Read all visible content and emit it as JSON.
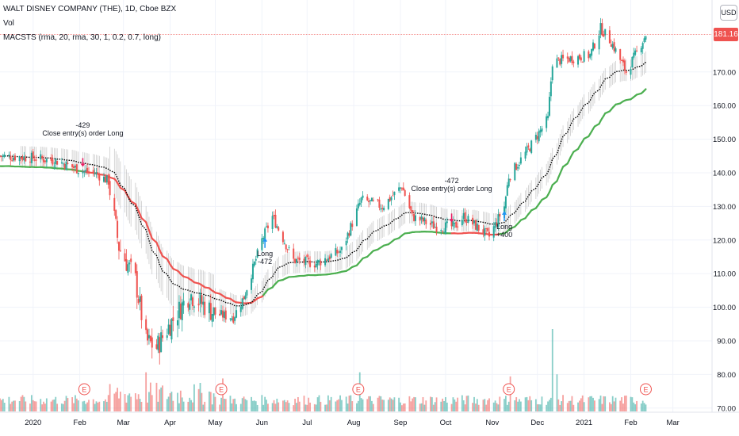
{
  "header": {
    "symbol_line": "WALT DISNEY COMPANY (THE), 1D, Cboe BZX",
    "volume_label": "Vol",
    "strategy_label": "MACSTS (rma, 20, rma, 30, 1, 0.2, 0.7, long)",
    "currency_button": "USD"
  },
  "last_price": "181.16",
  "colors": {
    "up": "#26a69a",
    "down": "#ef5350",
    "ma_fast": "#000000",
    "ma_slow_long": "#4caf50",
    "ma_slow_short": "#ef5350",
    "long_arrow": "#2196f3",
    "close_arrow": "#e91e63",
    "grid": "#f0f3fa",
    "axis_text": "#131722"
  },
  "annotations": [
    {
      "id": "close-1",
      "lines": [
        "-429",
        "Close entry(s) order Long"
      ],
      "date": "2020-02-03"
    },
    {
      "id": "long-1",
      "lines": [
        "Long",
        "-472"
      ],
      "date": "2020-06-03"
    },
    {
      "id": "close-2",
      "lines": [
        "-472",
        "Close entry(s) order Long"
      ],
      "date": "2020-10-05"
    },
    {
      "id": "long-2",
      "lines": [
        "Long",
        "+400"
      ],
      "date": "2020-11-09"
    }
  ],
  "earnings_markers": [
    {
      "label": "E",
      "date": "2020-02-04"
    },
    {
      "label": "E",
      "date": "2020-05-05"
    },
    {
      "label": "E",
      "date": "2020-08-04"
    },
    {
      "label": "E",
      "date": "2020-11-12"
    },
    {
      "label": "E",
      "date": "2021-02-11"
    }
  ],
  "chart_data": {
    "type": "candlestick",
    "title": "WALT DISNEY COMPANY (THE), 1D, Cboe BZX",
    "y_axis": {
      "ticks": [
        70,
        80,
        90,
        100,
        110,
        120,
        130,
        140,
        150,
        160,
        170
      ],
      "tick_labels": [
        "70.00",
        "80.00",
        "90.00",
        "100.00",
        "110.00",
        "120.00",
        "130.00",
        "140.00",
        "150.00",
        "160.00",
        "170.00"
      ],
      "range": [
        69,
        190
      ],
      "position": "right"
    },
    "x_axis": {
      "range": [
        "2019-12-10",
        "2021-03-27"
      ],
      "tick_labels": [
        "2020",
        "Feb",
        "Mar",
        "Apr",
        "May",
        "Jun",
        "Jul",
        "Aug",
        "Sep",
        "Oct",
        "Nov",
        "Dec",
        "2021",
        "Feb",
        "Mar"
      ],
      "tick_dates": [
        "2020-01-01",
        "2020-02-01",
        "2020-03-01",
        "2020-04-01",
        "2020-05-01",
        "2020-06-01",
        "2020-07-01",
        "2020-08-01",
        "2020-09-01",
        "2020-10-01",
        "2020-11-01",
        "2020-12-01",
        "2021-01-01",
        "2021-02-01",
        "2021-03-01"
      ]
    },
    "grid": true,
    "price_anchors": [
      [
        "2019-12-10",
        145
      ],
      [
        "2019-12-31",
        144.5
      ],
      [
        "2020-01-17",
        143.5
      ],
      [
        "2020-02-03",
        140.5
      ],
      [
        "2020-02-11",
        140
      ],
      [
        "2020-02-20",
        137.5
      ],
      [
        "2020-02-27",
        118
      ],
      [
        "2020-03-09",
        108
      ],
      [
        "2020-03-16",
        90
      ],
      [
        "2020-03-23",
        88
      ],
      [
        "2020-04-01",
        95
      ],
      [
        "2020-04-14",
        104
      ],
      [
        "2020-05-01",
        98
      ],
      [
        "2020-05-13",
        97
      ],
      [
        "2020-05-20",
        103
      ],
      [
        "2020-06-01",
        120
      ],
      [
        "2020-06-08",
        127
      ],
      [
        "2020-06-22",
        114
      ],
      [
        "2020-07-07",
        113
      ],
      [
        "2020-07-24",
        117
      ],
      [
        "2020-08-06",
        132
      ],
      [
        "2020-08-20",
        130
      ],
      [
        "2020-09-02",
        136
      ],
      [
        "2020-09-09",
        127
      ],
      [
        "2020-09-24",
        124
      ],
      [
        "2020-10-07",
        124
      ],
      [
        "2020-10-13",
        127
      ],
      [
        "2020-10-30",
        121
      ],
      [
        "2020-11-09",
        130
      ],
      [
        "2020-11-12",
        139
      ],
      [
        "2020-11-25",
        147
      ],
      [
        "2020-12-08",
        156
      ],
      [
        "2020-12-11",
        173
      ],
      [
        "2020-12-23",
        174
      ],
      [
        "2021-01-05",
        175
      ],
      [
        "2021-01-12",
        183
      ],
      [
        "2021-01-19",
        179
      ],
      [
        "2021-01-29",
        170
      ],
      [
        "2021-02-04",
        175
      ],
      [
        "2021-02-11",
        181.16
      ]
    ],
    "volume_scale_max": 100,
    "volume_spikes": [
      [
        "2020-03-16",
        38
      ],
      [
        "2020-03-19",
        28
      ],
      [
        "2020-05-06",
        32
      ],
      [
        "2020-08-05",
        38
      ],
      [
        "2020-11-13",
        34
      ],
      [
        "2020-12-11",
        80
      ],
      [
        "2020-12-14",
        36
      ],
      [
        "2021-02-12",
        24
      ]
    ],
    "series": [
      {
        "name": "MACSTS fast (rma, 20)",
        "style": "dotted-band"
      },
      {
        "name": "MACSTS slow (rma, 30)",
        "style": "line",
        "color_when_long": "#4caf50",
        "color_when_flat": "#ef5350"
      }
    ],
    "last_price_line": 181.16
  }
}
